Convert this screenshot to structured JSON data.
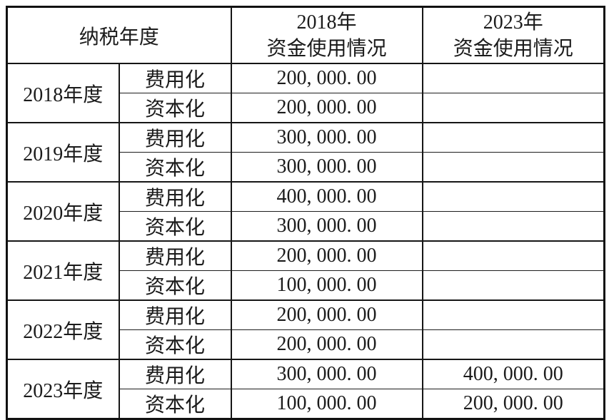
{
  "page": {
    "background": "#ffffff",
    "border_color": "#161616",
    "text_color": "#1b1b1b"
  },
  "table": {
    "header": {
      "tax_year": "纳税年度",
      "col_2018_line1": "2018年",
      "col_2018_line2": "资金使用情况",
      "col_2023_line1": "2023年",
      "col_2023_line2": "资金使用情况"
    },
    "groups": [
      {
        "year": "2018年度",
        "rows": [
          {
            "label": "费用化",
            "amount_2018": "200, 000. 00",
            "amount_2023": ""
          },
          {
            "label": "资本化",
            "amount_2018": "200, 000. 00",
            "amount_2023": ""
          }
        ]
      },
      {
        "year": "2019年度",
        "rows": [
          {
            "label": "费用化",
            "amount_2018": "300, 000. 00",
            "amount_2023": ""
          },
          {
            "label": "资本化",
            "amount_2018": "300, 000. 00",
            "amount_2023": ""
          }
        ]
      },
      {
        "year": "2020年度",
        "rows": [
          {
            "label": "费用化",
            "amount_2018": "400, 000. 00",
            "amount_2023": ""
          },
          {
            "label": "资本化",
            "amount_2018": "300, 000. 00",
            "amount_2023": ""
          }
        ]
      },
      {
        "year": "2021年度",
        "rows": [
          {
            "label": "费用化",
            "amount_2018": "200, 000. 00",
            "amount_2023": ""
          },
          {
            "label": "资本化",
            "amount_2018": "100, 000. 00",
            "amount_2023": ""
          }
        ]
      },
      {
        "year": "2022年度",
        "rows": [
          {
            "label": "费用化",
            "amount_2018": "200, 000. 00",
            "amount_2023": ""
          },
          {
            "label": "资本化",
            "amount_2018": "200, 000. 00",
            "amount_2023": ""
          }
        ]
      },
      {
        "year": "2023年度",
        "rows": [
          {
            "label": "费用化",
            "amount_2018": "300, 000. 00",
            "amount_2023": "400, 000. 00"
          },
          {
            "label": "资本化",
            "amount_2018": "100, 000. 00",
            "amount_2023": "200, 000. 00"
          }
        ]
      }
    ]
  }
}
